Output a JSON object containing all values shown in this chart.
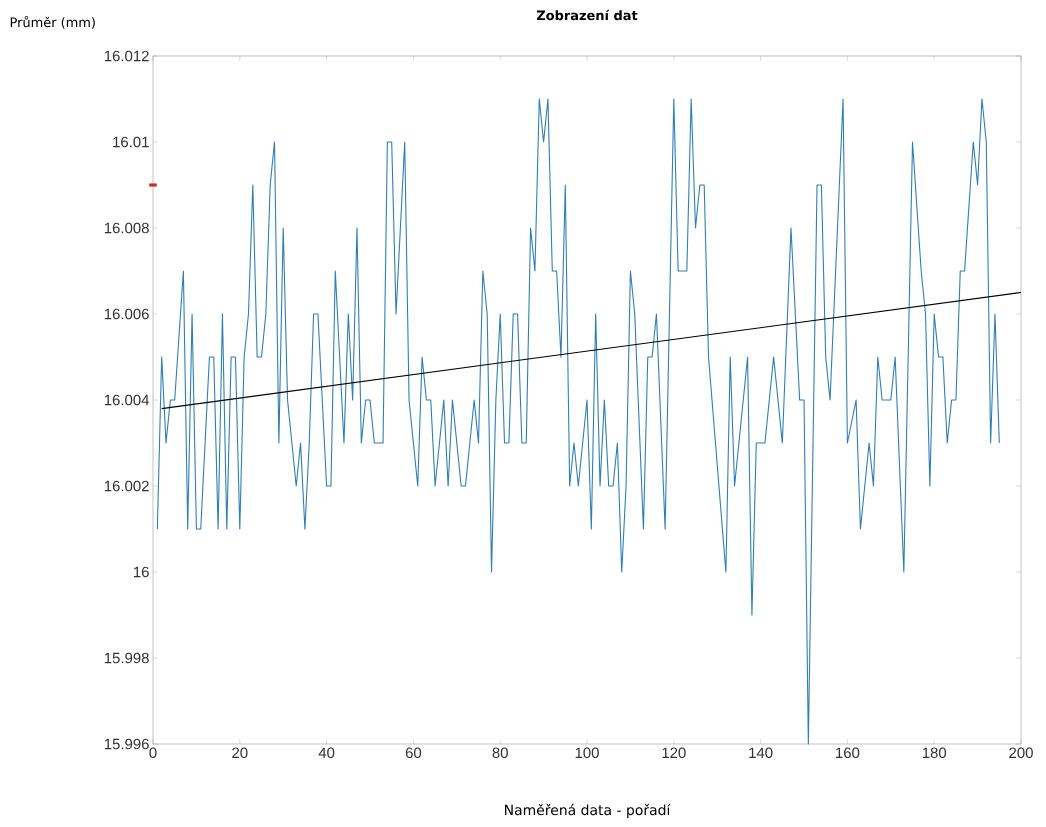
{
  "chart_data": {
    "type": "line",
    "title": "Zobrazení dat",
    "xlabel": "Naměřená data - pořadí",
    "ylabel": "Průměr (mm)",
    "xlim": [
      0,
      200
    ],
    "xticks": [
      0,
      20,
      40,
      60,
      80,
      100,
      120,
      140,
      160,
      180,
      200
    ],
    "ylim": [
      15.996,
      16.012
    ],
    "yticks": [
      15.996,
      15.998,
      16,
      16.002,
      16.004,
      16.006,
      16.008,
      16.01,
      16.012
    ],
    "marker": "none",
    "line_style": "solid",
    "series": [
      {
        "color": "#2f7fb5",
        "x": [
          1,
          2,
          3,
          4,
          5,
          7,
          8,
          9,
          10,
          11,
          13,
          14,
          15,
          16,
          17,
          18,
          19,
          20,
          21,
          22,
          23,
          24,
          25,
          26,
          27,
          28,
          29,
          30,
          31,
          33,
          34,
          35,
          36,
          37,
          38,
          40,
          41,
          42,
          44,
          45,
          46,
          47,
          48,
          49,
          50,
          51,
          53,
          54,
          55,
          56,
          58,
          59,
          61,
          62,
          63,
          64,
          65,
          67,
          68,
          69,
          71,
          72,
          74,
          75,
          76,
          77,
          78,
          79,
          80,
          81,
          82,
          83,
          84,
          85,
          86,
          87,
          88,
          89,
          90,
          91,
          92,
          93,
          94,
          95,
          96,
          97,
          98,
          99,
          100,
          101,
          102,
          103,
          104,
          105,
          106,
          107,
          108,
          109,
          110,
          111,
          113,
          114,
          115,
          116,
          118,
          120,
          121,
          123,
          124,
          125,
          126,
          127,
          128,
          132,
          133,
          134,
          137,
          138,
          139,
          141,
          143,
          145,
          147,
          149,
          150,
          151,
          153,
          154,
          155,
          156,
          159,
          160,
          162,
          163,
          165,
          166,
          167,
          168,
          170,
          171,
          173,
          175,
          177,
          178,
          179,
          180,
          181,
          182,
          183,
          184,
          185,
          186,
          187,
          189,
          190,
          191,
          192,
          193,
          194,
          195
        ],
        "values": [
          16.001,
          16.005,
          16.003,
          16.004,
          16.004,
          16.007,
          16.001,
          16.006,
          16.001,
          16.001,
          16.005,
          16.005,
          16.001,
          16.006,
          16.001,
          16.005,
          16.005,
          16.001,
          16.005,
          16.006,
          16.009,
          16.005,
          16.005,
          16.006,
          16.009,
          16.01,
          16.003,
          16.008,
          16.004,
          16.002,
          16.003,
          16.001,
          16.003,
          16.006,
          16.006,
          16.002,
          16.002,
          16.007,
          16.003,
          16.006,
          16.004,
          16.008,
          16.003,
          16.004,
          16.004,
          16.003,
          16.003,
          16.01,
          16.01,
          16.006,
          16.01,
          16.004,
          16.002,
          16.005,
          16.004,
          16.004,
          16.002,
          16.004,
          16.002,
          16.004,
          16.002,
          16.002,
          16.004,
          16.003,
          16.007,
          16.006,
          16.0,
          16.004,
          16.006,
          16.003,
          16.003,
          16.006,
          16.006,
          16.003,
          16.003,
          16.008,
          16.007,
          16.011,
          16.01,
          16.011,
          16.007,
          16.007,
          16.005,
          16.009,
          16.002,
          16.003,
          16.002,
          16.003,
          16.004,
          16.001,
          16.006,
          16.002,
          16.004,
          16.002,
          16.002,
          16.003,
          16.0,
          16.002,
          16.007,
          16.006,
          16.001,
          16.005,
          16.005,
          16.006,
          16.001,
          16.011,
          16.007,
          16.007,
          16.011,
          16.008,
          16.009,
          16.009,
          16.005,
          16.0,
          16.005,
          16.002,
          16.005,
          15.999,
          16.003,
          16.003,
          16.005,
          16.003,
          16.008,
          16.004,
          16.004,
          15.996,
          16.009,
          16.009,
          16.005,
          16.004,
          16.011,
          16.003,
          16.004,
          16.001,
          16.003,
          16.002,
          16.005,
          16.004,
          16.004,
          16.005,
          16.0,
          16.01,
          16.007,
          16.006,
          16.002,
          16.006,
          16.005,
          16.005,
          16.003,
          16.004,
          16.004,
          16.007,
          16.007,
          16.01,
          16.009,
          16.011,
          16.01,
          16.003,
          16.006,
          16.003
        ]
      },
      {
        "color": "#000000",
        "x": [
          2,
          200
        ],
        "values": [
          16.0038,
          16.0065
        ]
      },
      {
        "type": "scatter",
        "color": "#d62728",
        "marker": "square",
        "x": [
          0
        ],
        "values": [
          16.009
        ]
      }
    ]
  }
}
